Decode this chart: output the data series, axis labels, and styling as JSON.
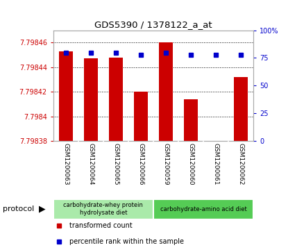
{
  "title": "GDS5390 / 1378122_a_at",
  "samples": [
    "GSM1200063",
    "GSM1200064",
    "GSM1200065",
    "GSM1200066",
    "GSM1200059",
    "GSM1200060",
    "GSM1200061",
    "GSM1200062"
  ],
  "bar_values": [
    7.798453,
    7.798447,
    7.798448,
    7.79842,
    7.79846,
    7.798414,
    7.79838,
    7.798432
  ],
  "percentile_values": [
    80,
    80,
    80,
    78,
    80,
    78,
    78,
    78
  ],
  "ymin": 7.79838,
  "ymax": 7.79847,
  "yticks": [
    7.79838,
    7.7984,
    7.79842,
    7.79844,
    7.79846
  ],
  "ytick_labels": [
    "7.79838",
    "7.7984",
    "7.79842",
    "7.79844",
    "7.79846"
  ],
  "y2min": 0,
  "y2max": 100,
  "y2ticks": [
    0,
    25,
    50,
    75,
    100
  ],
  "y2tick_labels": [
    "0",
    "25",
    "50",
    "75",
    "100%"
  ],
  "bar_color": "#cc0000",
  "percentile_color": "#0000cc",
  "protocol_groups": [
    {
      "label": "carbohydrate-whey protein\nhydrolysate diet",
      "start": 0,
      "end": 4,
      "color": "#aaeaaa"
    },
    {
      "label": "carbohydrate-amino acid diet",
      "start": 4,
      "end": 8,
      "color": "#55cc55"
    }
  ],
  "protocol_label": "protocol",
  "legend_items": [
    {
      "label": "transformed count",
      "color": "#cc0000"
    },
    {
      "label": "percentile rank within the sample",
      "color": "#0000cc"
    }
  ],
  "bg_color": "#ffffff",
  "tick_label_color_left": "#cc0000",
  "tick_label_color_right": "#0000cc",
  "bar_width": 0.55,
  "sample_bg_color": "#cccccc"
}
